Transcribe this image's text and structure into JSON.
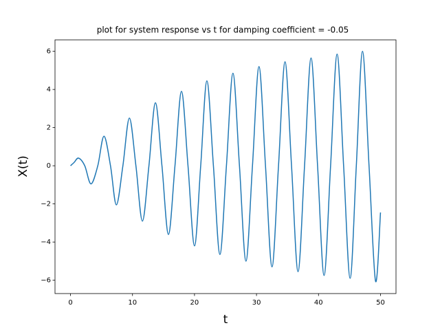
{
  "chart_data": {
    "type": "line",
    "title": "plot for system response vs t for damping coefficient = -0.05",
    "xlabel": "t",
    "ylabel": "X(t)",
    "color": "#1f77b4",
    "x": [
      0,
      0.6,
      1.3,
      2.3,
      3.3,
      4.4,
      5.4,
      6.45,
      7.4,
      8.45,
      9.5,
      10.55,
      11.6,
      12.65,
      13.7,
      14.75,
      15.8,
      16.85,
      17.9,
      18.95,
      20.0,
      21.0,
      22.0,
      23.05,
      24.1,
      25.15,
      26.2,
      27.25,
      28.3,
      29.35,
      30.4,
      31.45,
      32.5,
      33.55,
      34.6,
      35.65,
      36.7,
      37.75,
      38.8,
      39.85,
      40.9,
      41.95,
      43.0,
      44.05,
      45.1,
      46.1,
      47.1,
      48.15,
      49.2,
      50
    ],
    "values": [
      0,
      0.18,
      0.4,
      0,
      -0.95,
      0,
      1.55,
      0,
      -2.05,
      0,
      2.5,
      0,
      -2.9,
      0,
      3.3,
      0,
      -3.6,
      0,
      3.9,
      0,
      -4.2,
      0,
      4.45,
      0,
      -4.65,
      0,
      4.85,
      0,
      -5.0,
      0,
      5.2,
      0,
      -5.3,
      0,
      5.45,
      0,
      -5.55,
      0,
      5.65,
      0,
      -5.75,
      0,
      5.85,
      0,
      -5.9,
      0,
      6.0,
      0,
      -6.05,
      -2.45
    ],
    "xlim": [
      -2.5,
      52.5
    ],
    "xticks": [
      0,
      10,
      20,
      30,
      40,
      50
    ],
    "ylim": [
      -6.7,
      6.6
    ],
    "yticks": [
      {
        "value": -6,
        "label": "−6"
      },
      {
        "value": -4,
        "label": "−4"
      },
      {
        "value": -2,
        "label": "−2"
      },
      0,
      2,
      4,
      6
    ],
    "grid": false
  }
}
